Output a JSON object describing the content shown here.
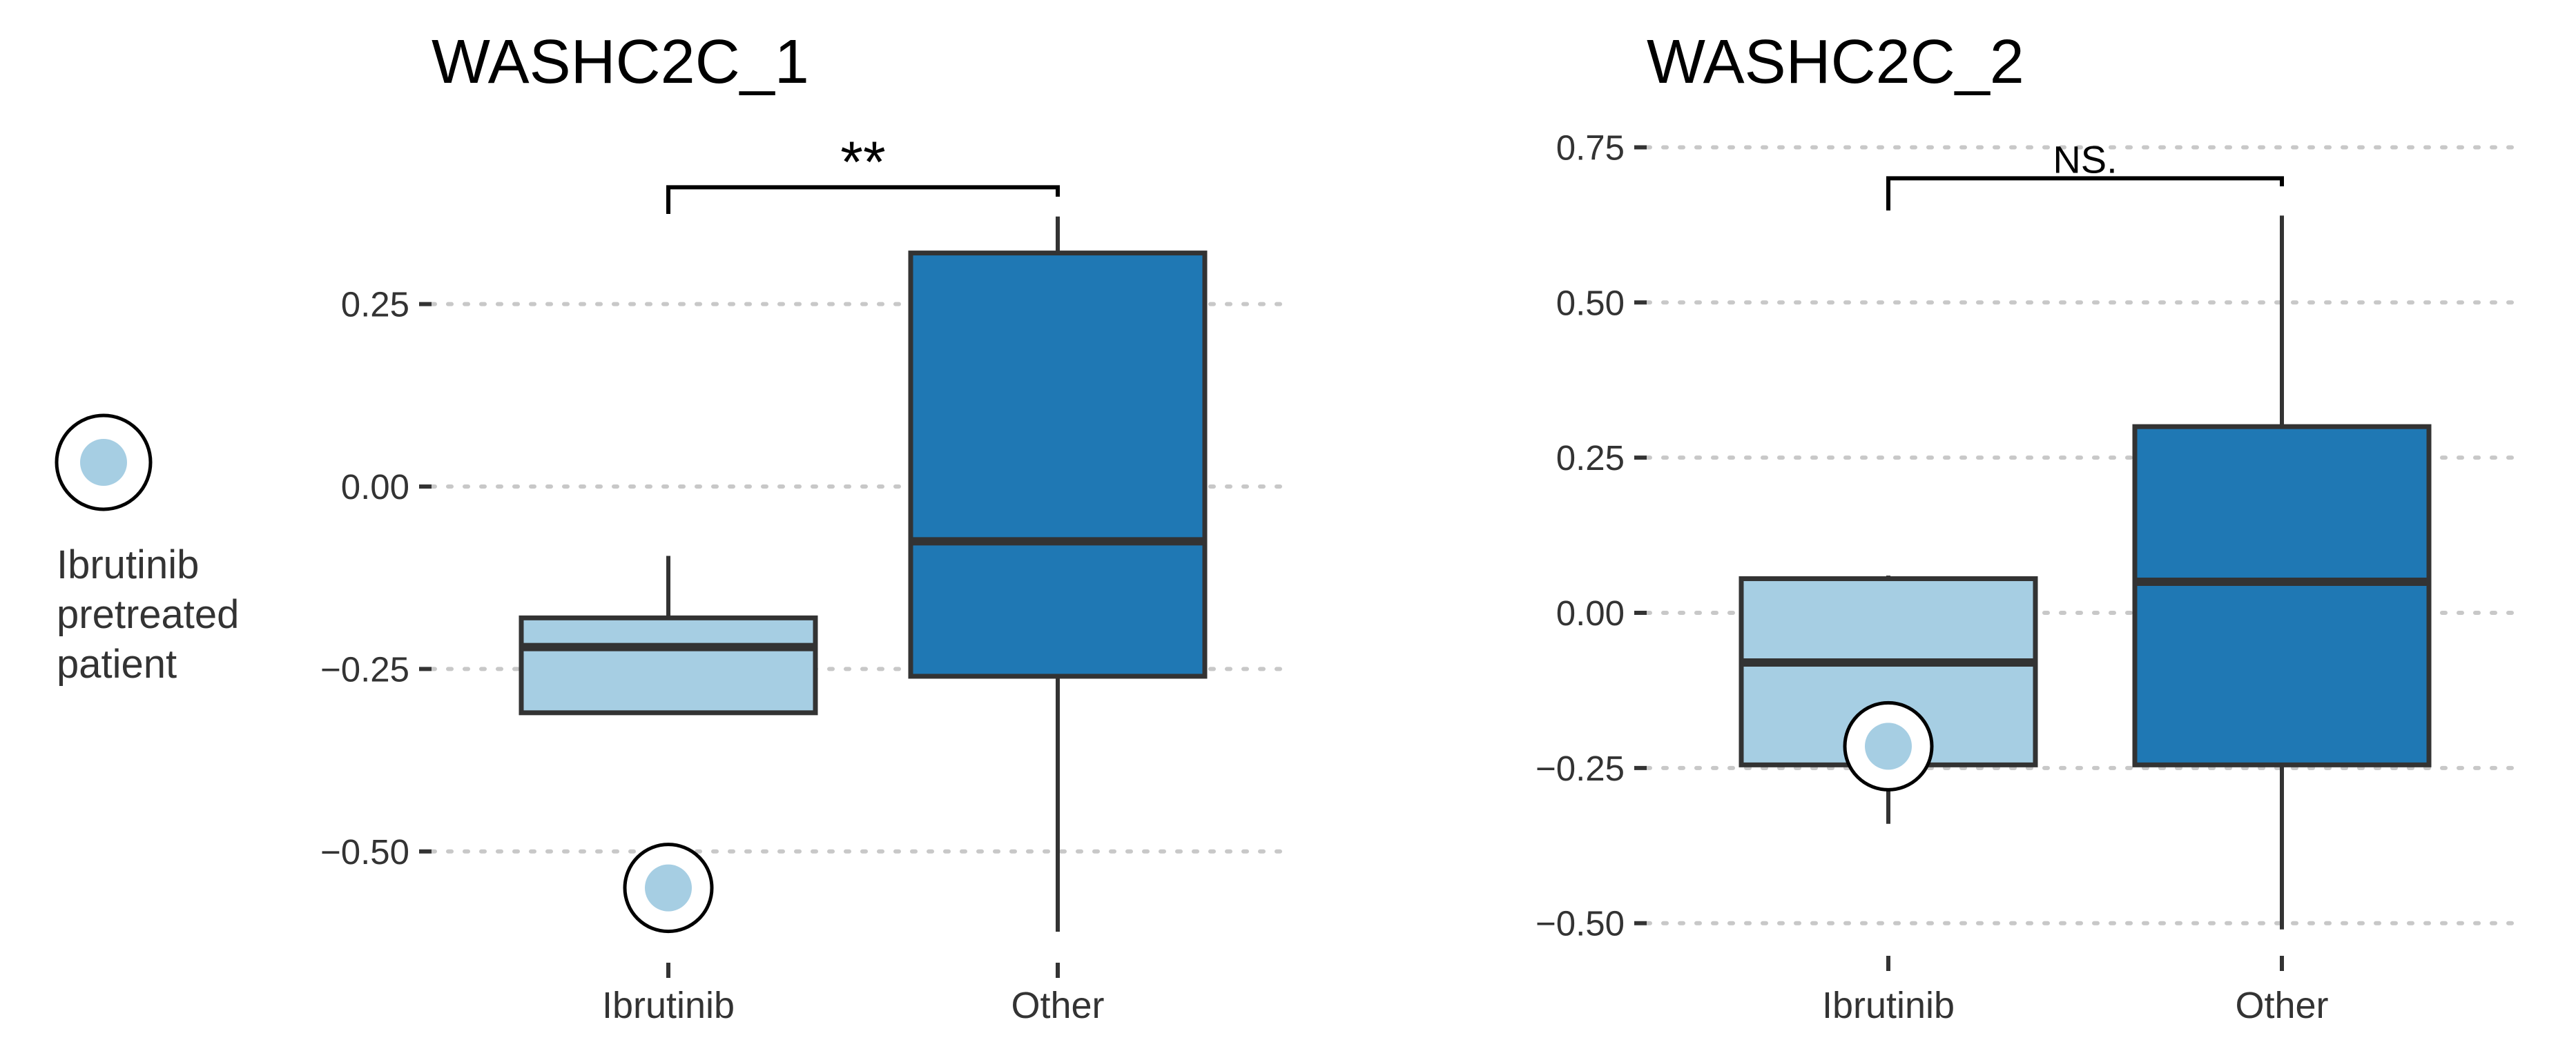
{
  "colors": {
    "ibrutinib_fill": "#a6cee3",
    "other_fill": "#1f78b4",
    "box_stroke": "#333333",
    "grid": "#c8c8c8",
    "bracket": "#000000"
  },
  "legend": {
    "marker_icon": "ringed-dot",
    "label_lines": [
      "Ibrutinib",
      "pretreated",
      "patient"
    ]
  },
  "chart_data": [
    {
      "type": "box",
      "title": "WASHC2C_1",
      "xlabel": "",
      "ylabel": "",
      "categories": [
        "Ibrutinib",
        "Other"
      ],
      "ylim": [
        -0.62,
        0.43
      ],
      "yticks": [
        0.25,
        0.0,
        -0.25,
        -0.5
      ],
      "ytick_labels": [
        "0.25",
        "0.00",
        "−0.25",
        "−0.50"
      ],
      "grid": true,
      "boxes": [
        {
          "category": "Ibrutinib",
          "whisker_low": -0.31,
          "q1": -0.31,
          "median": -0.22,
          "q3": -0.18,
          "whisker_high": -0.095
        },
        {
          "category": "Other",
          "whisker_low": -0.61,
          "q1": -0.26,
          "median": -0.075,
          "q3": 0.32,
          "whisker_high": 0.37
        }
      ],
      "highlighted_points": [
        {
          "category": "Ibrutinib",
          "y": -0.55
        }
      ],
      "significance": {
        "label": "**",
        "between": [
          "Ibrutinib",
          "Other"
        ],
        "y": 0.41
      }
    },
    {
      "type": "box",
      "title": "WASHC2C_2",
      "xlabel": "",
      "ylabel": "",
      "categories": [
        "Ibrutinib",
        "Other"
      ],
      "ylim": [
        -0.55,
        0.8
      ],
      "yticks": [
        0.75,
        0.5,
        0.25,
        0.0,
        -0.25,
        -0.5
      ],
      "ytick_labels": [
        "0.75",
        "0.50",
        "0.25",
        "0.00",
        "−0.25",
        "−0.50"
      ],
      "grid": true,
      "boxes": [
        {
          "category": "Ibrutinib",
          "whisker_low": -0.34,
          "q1": -0.245,
          "median": -0.08,
          "q3": 0.055,
          "whisker_high": 0.06
        },
        {
          "category": "Other",
          "whisker_low": -0.51,
          "q1": -0.245,
          "median": 0.05,
          "q3": 0.3,
          "whisker_high": 0.64
        }
      ],
      "highlighted_points": [
        {
          "category": "Ibrutinib",
          "y": -0.215
        }
      ],
      "significance": {
        "label": "NS.",
        "between": [
          "Ibrutinib",
          "Other"
        ],
        "y": 0.7
      }
    }
  ]
}
